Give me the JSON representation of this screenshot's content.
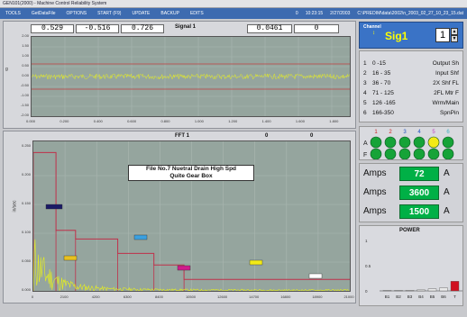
{
  "window": {
    "title": "GEN101(2000) - Machine Control Reliability System"
  },
  "menu": {
    "items": [
      "TOOLS",
      "GetDataFile",
      "OPTIONS",
      "START (F9)",
      "UPDATE",
      "BACKUP",
      "EDITS"
    ],
    "status": [
      "0",
      "10:23:15",
      "2/27/2003",
      "C:\\PREDIM\\data\\2002\\n_2003_02_27_10_23_15.dat"
    ]
  },
  "signal_panel": {
    "readouts": [
      "0.529",
      "-0.516",
      "0.726"
    ],
    "title": "Signal 1",
    "readouts_right": [
      "0.0461",
      "0"
    ],
    "y_ticks": [
      "2.00",
      "1.50",
      "1.00",
      "0.50",
      "0.00",
      "-0.50",
      "-1.00",
      "-1.50",
      "-2.00"
    ],
    "x_ticks": [
      "0.000",
      "0.200",
      "0.400",
      "0.600",
      "0.800",
      "1.000",
      "1.200",
      "1.400",
      "1.600",
      "1.800"
    ],
    "ylabel": "g"
  },
  "fft_panel": {
    "title": "FFT 1",
    "readouts_right": [
      "0",
      "0"
    ],
    "annotation_line1": "File No.7 Nuetral Drain High Spd",
    "annotation_line2": "Quite Gear Box",
    "ylabel": "in/sec",
    "y_ticks": [
      "0.250",
      "0.200",
      "0.150",
      "0.100",
      "0.050",
      "0.000"
    ],
    "x_ticks": [
      "0",
      "2100",
      "4200",
      "6300",
      "8400",
      "10500",
      "12600",
      "14700",
      "16800",
      "18900",
      "21000"
    ]
  },
  "channel": {
    "label": "Channel",
    "name": "Sig1",
    "spin_value": "1"
  },
  "channel_table": [
    {
      "n": "1",
      "range": "0 -15",
      "label": "Output Sh"
    },
    {
      "n": "2",
      "range": "16 - 35",
      "label": "Input Shf"
    },
    {
      "n": "3",
      "range": "36 - 70",
      "label": "2X Shf FL"
    },
    {
      "n": "4",
      "range": "71 - 125",
      "label": "2FL Mtr F"
    },
    {
      "n": "5",
      "range": "126 -165",
      "label": "Wrm/Main"
    },
    {
      "n": "6",
      "range": "166-350",
      "label": "SpnPin"
    }
  ],
  "leds": {
    "numbers": [
      "1",
      "2",
      "3",
      "4",
      "5",
      "6"
    ],
    "row_labels": [
      "A",
      "F"
    ],
    "colors": {
      "on": "#16a338",
      "highlight": "#f2ea16",
      "off": "#0f7a2a"
    }
  },
  "amps": [
    {
      "label": "Amps",
      "value": "72",
      "unit": "A"
    },
    {
      "label": "Amps",
      "value": "3600",
      "unit": "A"
    },
    {
      "label": "Amps",
      "value": "1500",
      "unit": "A"
    }
  ],
  "power": {
    "title": "POWER",
    "y_ticks": [
      "1",
      "0.5",
      "0"
    ],
    "categories": [
      "B1",
      "B2",
      "B3",
      "B4",
      "B5",
      "B6",
      "T"
    ],
    "values": [
      0.0,
      0.0,
      0.01,
      0.02,
      0.04,
      0.06,
      0.19
    ]
  },
  "chart_data": [
    {
      "type": "line",
      "title": "Signal 1",
      "ylabel": "g",
      "ylim": [
        -2,
        2
      ],
      "xlim": [
        0,
        2.0
      ],
      "series": [
        {
          "values": "noise around 0 within ±0.15"
        }
      ]
    },
    {
      "type": "line",
      "title": "FFT 1",
      "ylabel": "in/sec",
      "xlim": [
        0,
        21000
      ],
      "ylim": [
        0,
        0.25
      ],
      "bands": [
        {
          "x": [
            0,
            1500
          ],
          "level": 0.24
        },
        {
          "x": [
            1500,
            2800
          ],
          "level": 0.105
        },
        {
          "x": [
            2800,
            5600
          ],
          "level": 0.09
        },
        {
          "x": [
            5600,
            8000
          ],
          "level": 0.065
        },
        {
          "x": [
            8000,
            10000
          ],
          "level": 0.045
        },
        {
          "x": [
            10000,
            21000
          ],
          "level": 0.02
        }
      ]
    }
  ]
}
